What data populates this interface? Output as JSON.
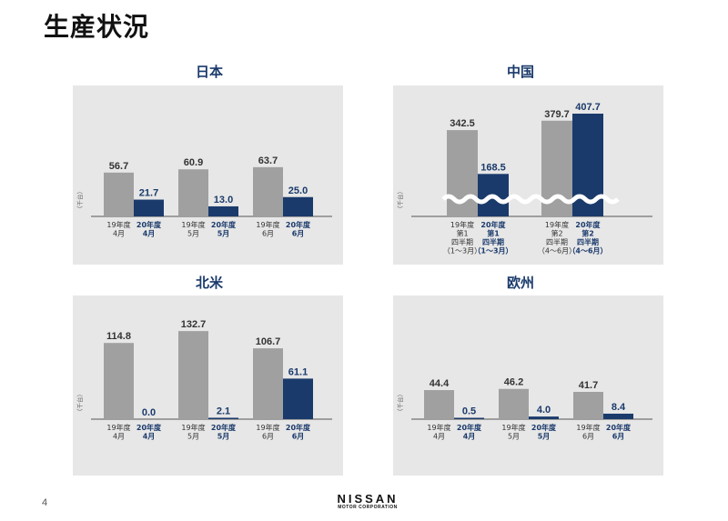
{
  "page_title": "生産状況",
  "page_number": "4",
  "logo": {
    "main": "NISSAN",
    "sub": "MOTOR CORPORATION"
  },
  "colors": {
    "prev_year": "#a0a0a0",
    "curr_year": "#1a3a6b",
    "panel_bg": "#e7e7e7",
    "label_dark": "#1a1a1a"
  },
  "chart_data": [
    {
      "type": "bar",
      "title": "日本",
      "unit_label": "（千台）",
      "groups": [
        {
          "bars": [
            {
              "value": 56.7,
              "label": "56.7",
              "category": [
                "19年度",
                "4月"
              ],
              "series": "prev"
            },
            {
              "value": 21.7,
              "label": "21.7",
              "category": [
                "20年度",
                "4月"
              ],
              "series": "curr"
            }
          ]
        },
        {
          "bars": [
            {
              "value": 60.9,
              "label": "60.9",
              "category": [
                "19年度",
                "5月"
              ],
              "series": "prev"
            },
            {
              "value": 13.0,
              "label": "13.0",
              "category": [
                "20年度",
                "5月"
              ],
              "series": "curr"
            }
          ]
        },
        {
          "bars": [
            {
              "value": 63.7,
              "label": "63.7",
              "category": [
                "19年度",
                "6月"
              ],
              "series": "prev"
            },
            {
              "value": 25.0,
              "label": "25.0",
              "category": [
                "20年度",
                "6月"
              ],
              "series": "curr"
            }
          ]
        }
      ]
    },
    {
      "type": "bar",
      "title": "中国",
      "unit_label": "（千台）",
      "axis_break": true,
      "groups": [
        {
          "bars": [
            {
              "value": 342.5,
              "label": "342.5",
              "category": [
                "19年度",
                "第1",
                "四半期",
                "（1～3月）"
              ],
              "series": "prev"
            },
            {
              "value": 168.5,
              "label": "168.5",
              "category": [
                "20年度",
                "第1",
                "四半期",
                "（1～3月）"
              ],
              "series": "curr"
            }
          ]
        },
        {
          "bars": [
            {
              "value": 379.7,
              "label": "379.7",
              "category": [
                "19年度",
                "第2",
                "四半期",
                "（4～6月）"
              ],
              "series": "prev"
            },
            {
              "value": 407.7,
              "label": "407.7",
              "category": [
                "20年度",
                "第2",
                "四半期",
                "（4～6月）"
              ],
              "series": "curr"
            }
          ]
        }
      ]
    },
    {
      "type": "bar",
      "title": "北米",
      "unit_label": "（千台）",
      "groups": [
        {
          "bars": [
            {
              "value": 114.8,
              "label": "114.8",
              "category": [
                "19年度",
                "4月"
              ],
              "series": "prev"
            },
            {
              "value": 0.0,
              "label": "0.0",
              "category": [
                "20年度",
                "4月"
              ],
              "series": "curr"
            }
          ]
        },
        {
          "bars": [
            {
              "value": 132.7,
              "label": "132.7",
              "category": [
                "19年度",
                "5月"
              ],
              "series": "prev"
            },
            {
              "value": 2.1,
              "label": "2.1",
              "category": [
                "20年度",
                "5月"
              ],
              "series": "curr"
            }
          ]
        },
        {
          "bars": [
            {
              "value": 106.7,
              "label": "106.7",
              "category": [
                "19年度",
                "6月"
              ],
              "series": "prev"
            },
            {
              "value": 61.1,
              "label": "61.1",
              "category": [
                "20年度",
                "6月"
              ],
              "series": "curr"
            }
          ]
        }
      ]
    },
    {
      "type": "bar",
      "title": "欧州",
      "unit_label": "（千台）",
      "groups": [
        {
          "bars": [
            {
              "value": 44.4,
              "label": "44.4",
              "category": [
                "19年度",
                "4月"
              ],
              "series": "prev"
            },
            {
              "value": 0.5,
              "label": "0.5",
              "category": [
                "20年度",
                "4月"
              ],
              "series": "curr"
            }
          ]
        },
        {
          "bars": [
            {
              "value": 46.2,
              "label": "46.2",
              "category": [
                "19年度",
                "5月"
              ],
              "series": "prev"
            },
            {
              "value": 4.0,
              "label": "4.0",
              "category": [
                "20年度",
                "5月"
              ],
              "series": "curr"
            }
          ]
        },
        {
          "bars": [
            {
              "value": 41.7,
              "label": "41.7",
              "category": [
                "19年度",
                "6月"
              ],
              "series": "prev"
            },
            {
              "value": 8.4,
              "label": "8.4",
              "category": [
                "20年度",
                "6月"
              ],
              "series": "curr"
            }
          ]
        }
      ]
    }
  ]
}
